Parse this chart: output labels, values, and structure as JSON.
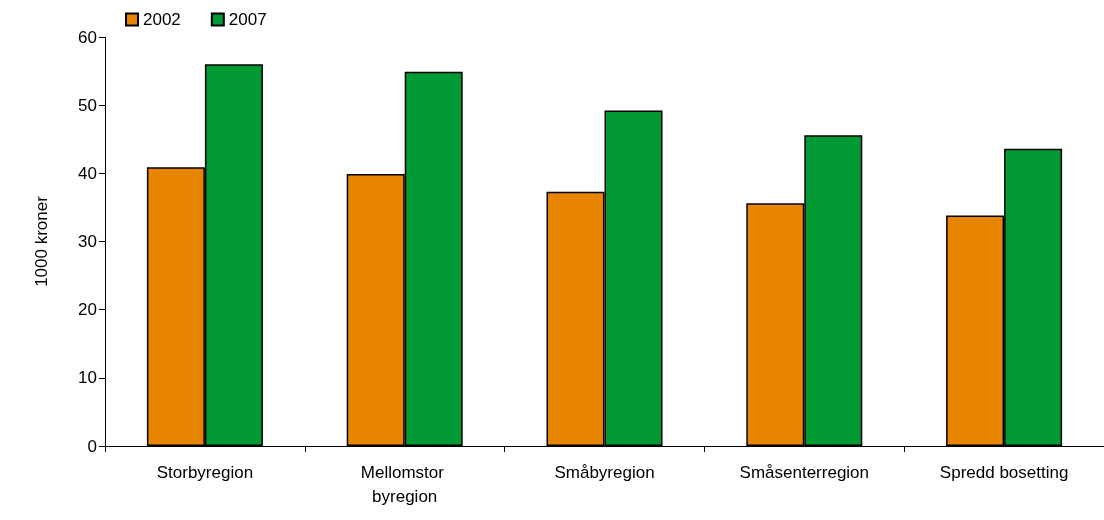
{
  "chart_data": {
    "type": "bar",
    "ylabel": "1000 kroner",
    "categories": [
      "Storbyregion",
      "Mellomstor byregion",
      "Småbyregion",
      "Småsenterregion",
      "Spredd bosetting"
    ],
    "series": [
      {
        "name": "2002",
        "color": "#e88500",
        "values": [
          40.9,
          39.9,
          37.3,
          35.6,
          33.8
        ]
      },
      {
        "name": "2007",
        "color": "#009933",
        "values": [
          56.0,
          54.9,
          49.2,
          45.6,
          43.6
        ]
      }
    ],
    "ylim": [
      0,
      60
    ],
    "yticks": [
      0,
      10,
      20,
      30,
      40,
      50,
      60
    ],
    "grid": false,
    "legend": "top left"
  }
}
